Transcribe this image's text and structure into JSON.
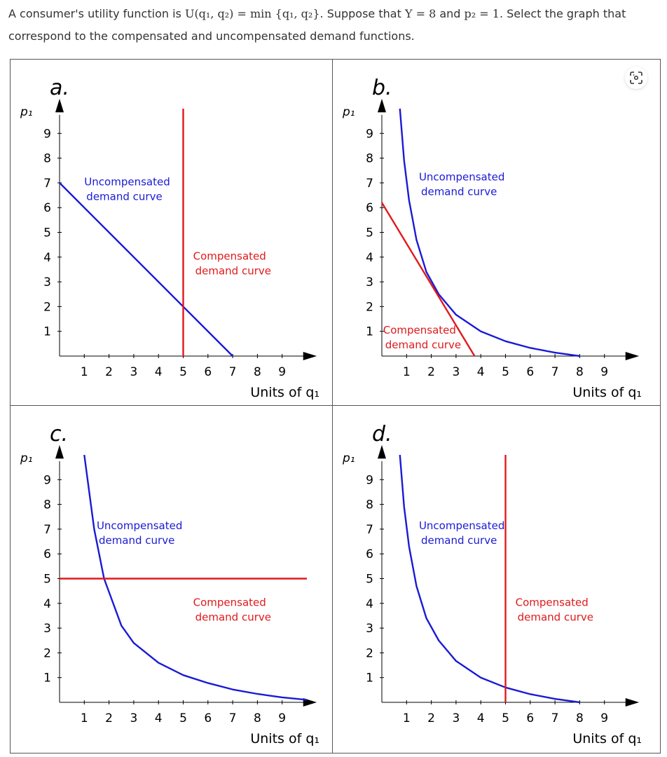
{
  "question": {
    "part1": "A consumer's utility function is ",
    "math1": "U(q₁, q₂) = min {q₁, q₂}",
    "part2": ". Suppose that ",
    "math2": "Y = 8",
    "part3": " and ",
    "math3": "p₂ = 1",
    "part4": ". Select the graph that correspond to the compensated and uncompensated demand functions."
  },
  "icons": {
    "visual_search": "scan-image-icon"
  },
  "colors": {
    "uncompensated": "#1a1ad6",
    "compensated": "#e0191c",
    "axis": "#000000"
  },
  "chart_data": [
    {
      "type": "line",
      "panel": "a.",
      "ylabel": "p₁",
      "xlabel": "Units of q₁",
      "xlim": [
        0,
        10
      ],
      "ylim": [
        0,
        10
      ],
      "xticks": [
        1,
        2,
        3,
        4,
        5,
        6,
        7,
        8,
        9
      ],
      "yticks": [
        1,
        2,
        3,
        4,
        5,
        6,
        7,
        8,
        9
      ],
      "series": [
        {
          "name": "Uncompensated demand curve",
          "color": "#1a1ad6",
          "points": [
            [
              0,
              7
            ],
            [
              7,
              0
            ]
          ],
          "label_at": [
            1,
            6.9
          ]
        },
        {
          "name": "Compensated demand curve",
          "color": "#e0191c",
          "points": [
            [
              5,
              0
            ],
            [
              5,
              10
            ]
          ],
          "label_at": [
            5.4,
            3.9
          ]
        }
      ]
    },
    {
      "type": "line",
      "panel": "b.",
      "ylabel": "p₁",
      "xlabel": "Units of q₁",
      "xlim": [
        0,
        10
      ],
      "ylim": [
        0,
        10
      ],
      "xticks": [
        1,
        2,
        3,
        4,
        5,
        6,
        7,
        8,
        9
      ],
      "yticks": [
        1,
        2,
        3,
        4,
        5,
        6,
        7,
        8,
        9
      ],
      "series": [
        {
          "name": "Uncompensated demand curve",
          "color": "#1a1ad6",
          "points": [
            [
              0.73,
              10
            ],
            [
              0.9,
              7.9
            ],
            [
              1.1,
              6.3
            ],
            [
              1.4,
              4.7
            ],
            [
              1.8,
              3.4
            ],
            [
              2.3,
              2.5
            ],
            [
              3,
              1.67
            ],
            [
              4,
              1
            ],
            [
              5,
              0.6
            ],
            [
              6,
              0.33
            ],
            [
              7,
              0.14
            ],
            [
              8,
              0
            ]
          ],
          "label_at": [
            1.5,
            7.1
          ]
        },
        {
          "name": "Compensated demand curve",
          "color": "#e0191c",
          "points": [
            [
              0,
              6.2
            ],
            [
              3.75,
              0
            ]
          ],
          "label_at": [
            0.05,
            0.9
          ]
        }
      ]
    },
    {
      "type": "line",
      "panel": "c.",
      "ylabel": "p₁",
      "xlabel": "Units of q₁",
      "xlim": [
        0,
        10
      ],
      "ylim": [
        0,
        10
      ],
      "xticks": [
        1,
        2,
        3,
        4,
        5,
        6,
        7,
        8,
        9
      ],
      "yticks": [
        1,
        2,
        3,
        4,
        5,
        6,
        7,
        8,
        9
      ],
      "series": [
        {
          "name": "Uncompensated demand curve",
          "color": "#1a1ad6",
          "points": [
            [
              1,
              10
            ],
            [
              1.4,
              7
            ],
            [
              1.8,
              5
            ],
            [
              2.5,
              3.1
            ],
            [
              3,
              2.4
            ],
            [
              4,
              1.6
            ],
            [
              5,
              1.1
            ],
            [
              6,
              0.78
            ],
            [
              7,
              0.52
            ],
            [
              8,
              0.34
            ],
            [
              9,
              0.2
            ],
            [
              10,
              0.1
            ]
          ],
          "label_at": [
            1.5,
            7
          ]
        },
        {
          "name": "Compensated demand curve",
          "color": "#e0191c",
          "points": [
            [
              0,
              5
            ],
            [
              10,
              5
            ]
          ],
          "label_at": [
            5.4,
            3.9
          ]
        }
      ]
    },
    {
      "type": "line",
      "panel": "d.",
      "ylabel": "p₁",
      "xlabel": "Units of q₁",
      "xlim": [
        0,
        10
      ],
      "ylim": [
        0,
        10
      ],
      "xticks": [
        1,
        2,
        3,
        4,
        5,
        6,
        7,
        8,
        9
      ],
      "yticks": [
        1,
        2,
        3,
        4,
        5,
        6,
        7,
        8,
        9
      ],
      "series": [
        {
          "name": "Uncompensated demand curve",
          "color": "#1a1ad6",
          "points": [
            [
              0.73,
              10
            ],
            [
              0.9,
              7.9
            ],
            [
              1.1,
              6.3
            ],
            [
              1.4,
              4.7
            ],
            [
              1.8,
              3.4
            ],
            [
              2.3,
              2.5
            ],
            [
              3,
              1.67
            ],
            [
              4,
              1
            ],
            [
              5,
              0.6
            ],
            [
              6,
              0.33
            ],
            [
              7,
              0.14
            ],
            [
              8,
              0
            ]
          ],
          "label_at": [
            1.5,
            7
          ]
        },
        {
          "name": "Compensated demand curve",
          "color": "#e0191c",
          "points": [
            [
              5,
              0
            ],
            [
              5,
              10
            ]
          ],
          "label_at": [
            5.4,
            3.9
          ]
        }
      ]
    }
  ]
}
